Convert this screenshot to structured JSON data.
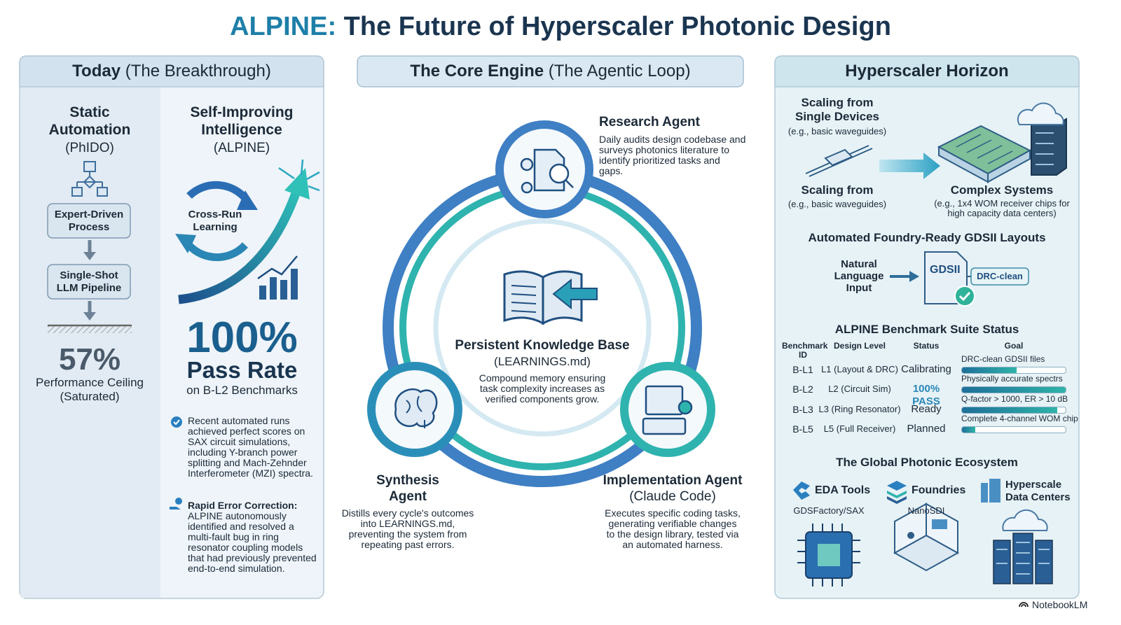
{
  "header": {
    "accent": "ALPINE:",
    "title": "The Future of Hyperscaler Photonic Design"
  },
  "today": {
    "heading": "Today",
    "subheading": "(The Breakthrough)",
    "static": {
      "title": "Static Automation",
      "subtitle": "(PhIDO)",
      "steps": [
        "Expert-Driven Process",
        "Single-Shot LLM Pipeline"
      ],
      "stat": "57%",
      "stat_label": "Performance Ceiling (Saturated)"
    },
    "alpine": {
      "title": "Self-Improving Intelligence",
      "subtitle": "(ALPINE)",
      "loop_label": "Cross-Run Learning",
      "stat": "100%",
      "stat_label": "Pass Rate",
      "stat_note": "on B-L2 Benchmarks",
      "notes": [
        {
          "text": "Recent automated runs achieved perfect scores on SAX circuit simulations, including Y-branch power splitting and Mach-Zehnder Interferometer (MZI) spectra."
        },
        {
          "lead": "Rapid Error Correction:",
          "text": "ALPINE autonomously identified and resolved a multi-fault bug in ring resonator coupling models that had previously prevented end-to-end simulation."
        }
      ]
    }
  },
  "core": {
    "heading": "The Core Engine",
    "subheading": "(The Agentic Loop)",
    "hub": {
      "title": "Persistent Knowledge Base",
      "subtitle": "(LEARNINGS.md)",
      "text": "Compound memory ensuring task complexity increases as verified components grow."
    },
    "research": {
      "title": "Research Agent",
      "text": "Daily audits design codebase and surveys photonics literature to identify prioritized tasks and gaps."
    },
    "synthesis": {
      "title": "Synthesis Agent",
      "text": "Distills every cycle's outcomes into LEARNINGS.md, preventing the system from repeating past errors."
    },
    "implementation": {
      "title": "Implementation Agent",
      "subtitle": "(Claude Code)",
      "text": "Executes specific coding tasks, generating verifiable changes to the design library, tested via an automated harness."
    }
  },
  "horizon": {
    "heading": "Hyperscaler Horizon",
    "scaling": {
      "from_title": "Scaling from Single Devices",
      "from_note": "(e.g., basic waveguides)",
      "from_title_2": "Scaling from",
      "from_note_2": "(e.g., basic waveguides)",
      "to_title": "Complex Systems",
      "to_note": "(e.g., 1x4 WOM receiver chips for high capacity data centers)"
    },
    "gdsii": {
      "title": "Automated Foundry-Ready GDSII Layouts",
      "input": "Natural Language Input",
      "doc": "GDSII",
      "badge": "DRC-clean"
    },
    "benchmarks": {
      "title": "ALPINE Benchmark Suite Status",
      "columns": [
        "Benchmark ID",
        "Design Level",
        "Status",
        "Goal"
      ],
      "rows": [
        {
          "id": "B-L1",
          "level": "L1 (Layout & DRC)",
          "status": "Calibrating",
          "goal": "DRC-clean GDSII files",
          "progress": 53
        },
        {
          "id": "B-L2",
          "level": "L2 (Circuit Sim)",
          "status": "100% PASS",
          "goal": "Physically accurate spectrs",
          "progress": 100
        },
        {
          "id": "B-L3",
          "level": "L3 (Ring Resonator)",
          "status": "Ready",
          "goal": "Q-factor > 1000, ER > 10 dB",
          "progress": 92
        },
        {
          "id": "B-L5",
          "level": "L5 (Full Receiver)",
          "status": "Planned",
          "goal": "Complete 4-channel WOM chip",
          "progress": 13
        }
      ]
    },
    "ecosystem": {
      "title": "The Global Photonic Ecosystem",
      "items": [
        {
          "name": "EDA Tools",
          "example": "GDSFactory/SAX"
        },
        {
          "name": "Foundries",
          "example": "NanoSDI"
        },
        {
          "name": "Hyperscale Data Centers"
        }
      ]
    }
  },
  "footer": "NotebookLM"
}
